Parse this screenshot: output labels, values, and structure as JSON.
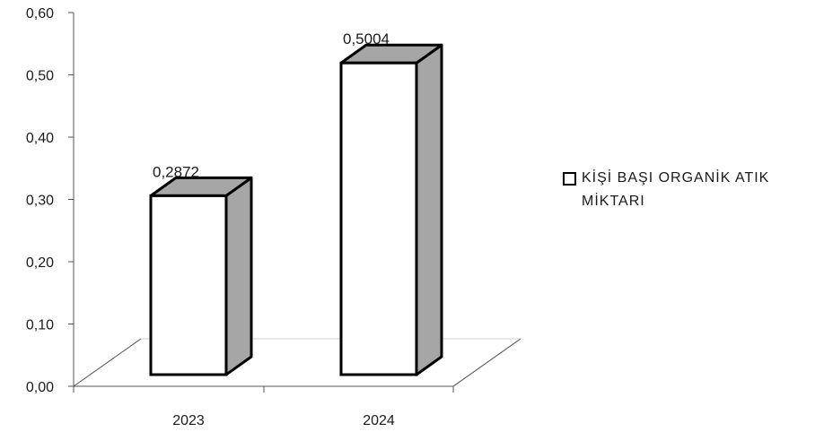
{
  "chart_data": {
    "type": "bar",
    "categories": [
      "2023",
      "2024"
    ],
    "series": [
      {
        "name": "KİŞİ BAŞI ORGANİK ATIK MİKTARI",
        "values": [
          0.2872,
          0.5004
        ]
      }
    ],
    "data_labels": [
      "0,2872",
      "0,5004"
    ],
    "ylim": [
      0,
      0.6
    ],
    "y_ticks": [
      "0,00",
      "0,10",
      "0,20",
      "0,30",
      "0,40",
      "0,50",
      "0,60"
    ],
    "legend_position": "right",
    "grid": false,
    "style": "3d-column",
    "colors": {
      "face": "#ffffff",
      "side": "#a6a6a6",
      "top": "#a6a6a6",
      "outline": "#000000",
      "floor": "#d0d0d0"
    }
  }
}
